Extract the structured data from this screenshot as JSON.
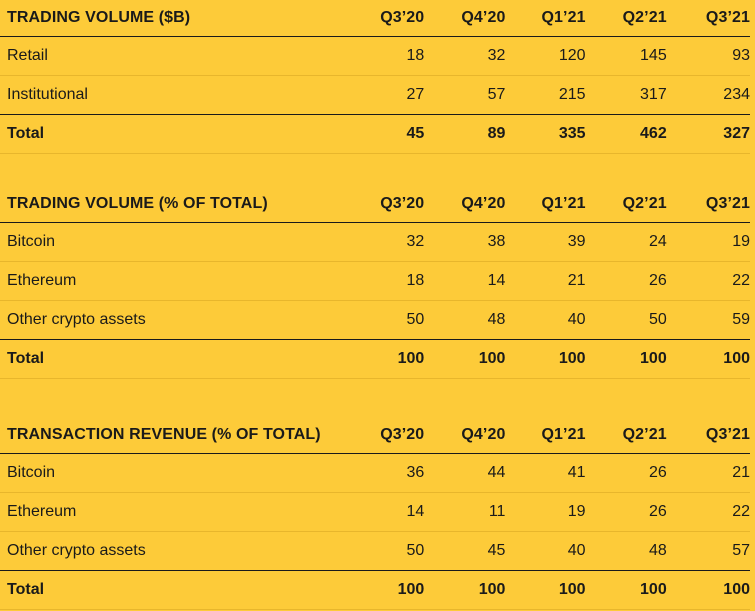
{
  "columns": [
    "Q3’20",
    "Q4’20",
    "Q1’21",
    "Q2’21",
    "Q3’21"
  ],
  "tables": [
    {
      "title": "TRADING VOLUME ($B)",
      "rows": [
        {
          "label": "Retail",
          "values": [
            "18",
            "32",
            "120",
            "145",
            "93"
          ]
        },
        {
          "label": "Institutional",
          "values": [
            "27",
            "57",
            "215",
            "317",
            "234"
          ]
        }
      ],
      "total": {
        "label": "Total",
        "values": [
          "45",
          "89",
          "335",
          "462",
          "327"
        ]
      }
    },
    {
      "title": "TRADING VOLUME (% OF TOTAL)",
      "rows": [
        {
          "label": "Bitcoin",
          "values": [
            "32",
            "38",
            "39",
            "24",
            "19"
          ]
        },
        {
          "label": "Ethereum",
          "values": [
            "18",
            "14",
            "21",
            "26",
            "22"
          ]
        },
        {
          "label": "Other crypto assets",
          "values": [
            "50",
            "48",
            "40",
            "50",
            "59"
          ]
        }
      ],
      "total": {
        "label": "Total",
        "values": [
          "100",
          "100",
          "100",
          "100",
          "100"
        ]
      }
    },
    {
      "title": "TRANSACTION REVENUE (% OF TOTAL)",
      "rows": [
        {
          "label": "Bitcoin",
          "values": [
            "36",
            "44",
            "41",
            "26",
            "21"
          ]
        },
        {
          "label": "Ethereum",
          "values": [
            "14",
            "11",
            "19",
            "26",
            "22"
          ]
        },
        {
          "label": "Other crypto assets",
          "values": [
            "50",
            "45",
            "40",
            "48",
            "57"
          ]
        }
      ],
      "total": {
        "label": "Total",
        "values": [
          "100",
          "100",
          "100",
          "100",
          "100"
        ]
      }
    }
  ]
}
